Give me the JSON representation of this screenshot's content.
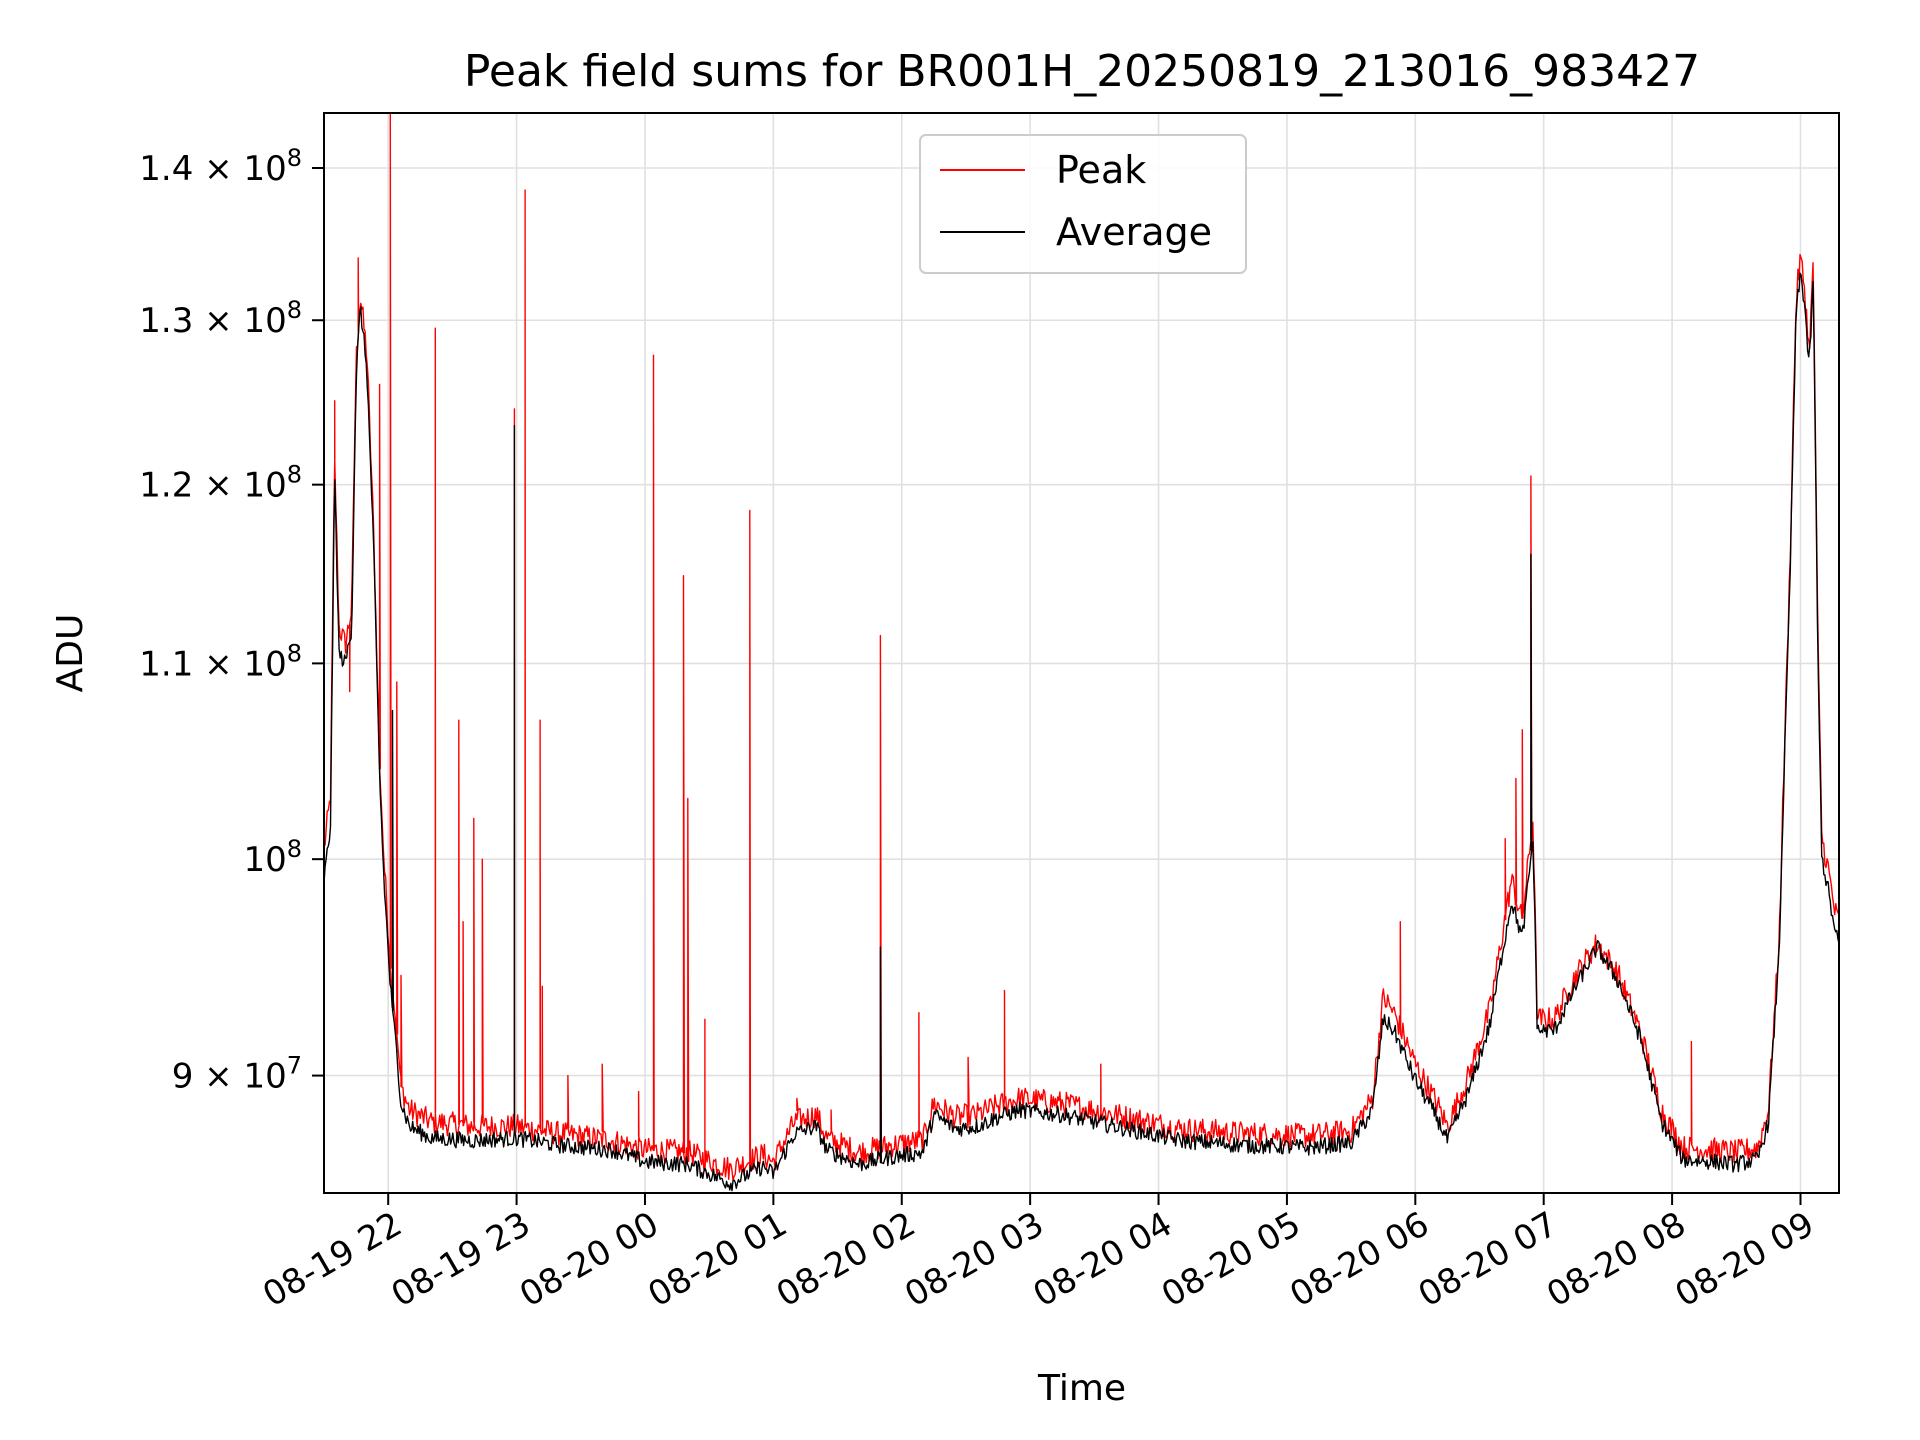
{
  "chart_data": {
    "type": "line",
    "title": "Peak field sums for BR001H_20250819_213016_983427",
    "xlabel": "Time",
    "ylabel": "ADU",
    "yscale": "log",
    "grid": true,
    "legend_placement": "top-center",
    "xlim": [
      "2025-08-19 21:30",
      "2025-08-20 09:18"
    ],
    "ylim": [
      85000000,
      143800000
    ],
    "x_ticks": [
      {
        "t": "2025-08-19 22:00",
        "label": "08-19 22"
      },
      {
        "t": "2025-08-19 23:00",
        "label": "08-19 23"
      },
      {
        "t": "2025-08-20 00:00",
        "label": "08-20 00"
      },
      {
        "t": "2025-08-20 01:00",
        "label": "08-20 01"
      },
      {
        "t": "2025-08-20 02:00",
        "label": "08-20 02"
      },
      {
        "t": "2025-08-20 03:00",
        "label": "08-20 03"
      },
      {
        "t": "2025-08-20 04:00",
        "label": "08-20 04"
      },
      {
        "t": "2025-08-20 05:00",
        "label": "08-20 05"
      },
      {
        "t": "2025-08-20 06:00",
        "label": "08-20 06"
      },
      {
        "t": "2025-08-20 07:00",
        "label": "08-20 07"
      },
      {
        "t": "2025-08-20 08:00",
        "label": "08-20 08"
      },
      {
        "t": "2025-08-20 09:00",
        "label": "08-20 09"
      }
    ],
    "y_ticks": [
      {
        "value": 90000000,
        "base": "9 × 10",
        "exp": "7"
      },
      {
        "value": 100000000,
        "base": "10",
        "exp": "8"
      },
      {
        "value": 110000000,
        "base": "1.1 × 10",
        "exp": "8"
      },
      {
        "value": 120000000,
        "base": "1.2 × 10",
        "exp": "8"
      },
      {
        "value": 130000000,
        "base": "1.3 × 10",
        "exp": "8"
      },
      {
        "value": 140000000,
        "base": "1.4 × 10",
        "exp": "8"
      }
    ],
    "series": [
      {
        "name": "Peak",
        "color": "#ff0000",
        "points": [
          [
            "2025-08-19 21:30",
            100500000
          ],
          [
            "2025-08-19 21:33",
            103000000
          ],
          [
            "2025-08-19 21:35",
            121500000
          ],
          [
            "2025-08-19 21:37",
            112000000
          ],
          [
            "2025-08-19 21:40",
            111000000
          ],
          [
            "2025-08-19 21:43",
            113000000
          ],
          [
            "2025-08-19 21:45",
            127500000
          ],
          [
            "2025-08-19 21:47",
            131500000
          ],
          [
            "2025-08-19 21:50",
            128000000
          ],
          [
            "2025-08-19 21:53",
            118000000
          ],
          [
            "2025-08-19 21:56",
            105000000
          ],
          [
            "2025-08-19 21:58",
            100000000
          ],
          [
            "2025-08-19 22:01",
            95000000
          ],
          [
            "2025-08-19 22:04",
            92000000
          ],
          [
            "2025-08-19 22:06",
            89500000
          ],
          [
            "2025-08-19 22:10",
            88500000
          ],
          [
            "2025-08-19 22:20",
            88000000
          ],
          [
            "2025-08-19 22:40",
            87800000
          ],
          [
            "2025-08-19 23:00",
            87800000
          ],
          [
            "2025-08-19 23:20",
            87500000
          ],
          [
            "2025-08-19 23:45",
            87200000
          ],
          [
            "2025-08-20 00:00",
            86800000
          ],
          [
            "2025-08-20 00:20",
            86700000
          ],
          [
            "2025-08-20 00:40",
            86000000
          ],
          [
            "2025-08-20 00:55",
            86600000
          ],
          [
            "2025-08-20 01:00",
            86300000
          ],
          [
            "2025-08-20 01:10",
            88000000
          ],
          [
            "2025-08-20 01:20",
            88300000
          ],
          [
            "2025-08-20 01:25",
            87300000
          ],
          [
            "2025-08-20 01:40",
            86700000
          ],
          [
            "2025-08-20 01:55",
            87000000
          ],
          [
            "2025-08-20 02:10",
            87200000
          ],
          [
            "2025-08-20 02:15",
            88800000
          ],
          [
            "2025-08-20 02:25",
            88200000
          ],
          [
            "2025-08-20 02:35",
            88300000
          ],
          [
            "2025-08-20 02:45",
            88700000
          ],
          [
            "2025-08-20 02:55",
            89000000
          ],
          [
            "2025-08-20 03:15",
            88800000
          ],
          [
            "2025-08-20 03:30",
            88500000
          ],
          [
            "2025-08-20 03:50",
            88100000
          ],
          [
            "2025-08-20 04:10",
            87700000
          ],
          [
            "2025-08-20 04:40",
            87500000
          ],
          [
            "2025-08-20 05:10",
            87400000
          ],
          [
            "2025-08-20 05:30",
            87600000
          ],
          [
            "2025-08-20 05:40",
            89000000
          ],
          [
            "2025-08-20 05:45",
            93500000
          ],
          [
            "2025-08-20 05:50",
            92800000
          ],
          [
            "2025-08-20 06:00",
            90500000
          ],
          [
            "2025-08-20 06:10",
            88800000
          ],
          [
            "2025-08-20 06:15",
            87800000
          ],
          [
            "2025-08-20 06:25",
            90000000
          ],
          [
            "2025-08-20 06:35",
            93000000
          ],
          [
            "2025-08-20 06:40",
            96000000
          ],
          [
            "2025-08-20 06:45",
            99000000
          ],
          [
            "2025-08-20 06:50",
            97000000
          ],
          [
            "2025-08-20 06:55",
            102000000
          ],
          [
            "2025-08-20 06:57",
            92500000
          ],
          [
            "2025-08-20 07:05",
            92500000
          ],
          [
            "2025-08-20 07:15",
            94500000
          ],
          [
            "2025-08-20 07:25",
            96000000
          ],
          [
            "2025-08-20 07:35",
            94500000
          ],
          [
            "2025-08-20 07:45",
            92000000
          ],
          [
            "2025-08-20 07:55",
            88500000
          ],
          [
            "2025-08-20 08:05",
            86900000
          ],
          [
            "2025-08-20 08:20",
            86800000
          ],
          [
            "2025-08-20 08:30",
            86700000
          ],
          [
            "2025-08-20 08:40",
            86900000
          ],
          [
            "2025-08-20 08:45",
            88500000
          ],
          [
            "2025-08-20 08:50",
            96000000
          ],
          [
            "2025-08-20 08:55",
            115000000
          ],
          [
            "2025-08-20 08:58",
            131500000
          ],
          [
            "2025-08-20 09:00",
            134000000
          ],
          [
            "2025-08-20 09:02",
            132000000
          ],
          [
            "2025-08-20 09:04",
            128000000
          ],
          [
            "2025-08-20 09:06",
            133500000
          ],
          [
            "2025-08-20 09:08",
            112000000
          ],
          [
            "2025-08-20 09:10",
            101000000
          ],
          [
            "2025-08-20 09:13",
            99500000
          ],
          [
            "2025-08-20 09:16",
            97500000
          ],
          [
            "2025-08-20 09:18",
            97000000
          ]
        ],
        "spikes": [
          [
            "2025-08-19 21:35",
            125000000
          ],
          [
            "2025-08-19 21:42",
            108500000
          ],
          [
            "2025-08-19 21:46",
            134000000
          ],
          [
            "2025-08-19 21:56",
            126000000
          ],
          [
            "2025-08-19 22:01",
            143800000
          ],
          [
            "2025-08-19 22:04",
            109000000
          ],
          [
            "2025-08-19 22:06",
            94500000
          ],
          [
            "2025-08-19 22:22",
            129500000
          ],
          [
            "2025-08-19 22:33",
            107000000
          ],
          [
            "2025-08-19 22:35",
            97000000
          ],
          [
            "2025-08-19 22:40",
            102000000
          ],
          [
            "2025-08-19 22:44",
            100000000
          ],
          [
            "2025-08-19 22:59",
            124500000
          ],
          [
            "2025-08-19 23:04",
            138500000
          ],
          [
            "2025-08-19 23:11",
            107000000
          ],
          [
            "2025-08-19 23:12",
            94000000
          ],
          [
            "2025-08-19 23:24",
            90000000
          ],
          [
            "2025-08-19 23:40",
            90500000
          ],
          [
            "2025-08-19 23:57",
            89300000
          ],
          [
            "2025-08-20 00:04",
            127800000
          ],
          [
            "2025-08-20 00:18",
            114800000
          ],
          [
            "2025-08-20 00:20",
            103000000
          ],
          [
            "2025-08-20 00:28",
            92500000
          ],
          [
            "2025-08-20 00:49",
            118500000
          ],
          [
            "2025-08-20 01:11",
            89000000
          ],
          [
            "2025-08-20 01:27",
            88500000
          ],
          [
            "2025-08-20 01:50",
            111500000
          ],
          [
            "2025-08-20 02:08",
            92800000
          ],
          [
            "2025-08-20 02:31",
            90800000
          ],
          [
            "2025-08-20 02:48",
            93800000
          ],
          [
            "2025-08-20 03:33",
            90500000
          ],
          [
            "2025-08-20 05:53",
            97000000
          ],
          [
            "2025-08-20 06:42",
            101000000
          ],
          [
            "2025-08-20 06:47",
            104000000
          ],
          [
            "2025-08-20 06:50",
            106500000
          ],
          [
            "2025-08-20 06:54",
            120500000
          ],
          [
            "2025-08-20 08:09",
            91500000
          ]
        ]
      },
      {
        "name": "Average",
        "color": "#000000",
        "points": [
          [
            "2025-08-19 21:30",
            99000000
          ],
          [
            "2025-08-19 21:33",
            101500000
          ],
          [
            "2025-08-19 21:35",
            120500000
          ],
          [
            "2025-08-19 21:37",
            110500000
          ],
          [
            "2025-08-19 21:40",
            110000000
          ],
          [
            "2025-08-19 21:43",
            112000000
          ],
          [
            "2025-08-19 21:45",
            126500000
          ],
          [
            "2025-08-19 21:47",
            130800000
          ],
          [
            "2025-08-19 21:50",
            127000000
          ],
          [
            "2025-08-19 21:53",
            117000000
          ],
          [
            "2025-08-19 21:56",
            104000000
          ],
          [
            "2025-08-19 21:58",
            99000000
          ],
          [
            "2025-08-19 22:01",
            94000000
          ],
          [
            "2025-08-19 22:04",
            91000000
          ],
          [
            "2025-08-19 22:06",
            88800000
          ],
          [
            "2025-08-19 22:10",
            87800000
          ],
          [
            "2025-08-19 22:20",
            87300000
          ],
          [
            "2025-08-19 22:40",
            87200000
          ],
          [
            "2025-08-19 23:00",
            87300000
          ],
          [
            "2025-08-19 23:20",
            87000000
          ],
          [
            "2025-08-19 23:45",
            86800000
          ],
          [
            "2025-08-20 00:00",
            86300000
          ],
          [
            "2025-08-20 00:20",
            86200000
          ],
          [
            "2025-08-20 00:40",
            85400000
          ],
          [
            "2025-08-20 00:55",
            86100000
          ],
          [
            "2025-08-20 01:00",
            85800000
          ],
          [
            "2025-08-20 01:10",
            87500000
          ],
          [
            "2025-08-20 01:20",
            87800000
          ],
          [
            "2025-08-20 01:25",
            86800000
          ],
          [
            "2025-08-20 01:40",
            86200000
          ],
          [
            "2025-08-20 01:55",
            86500000
          ],
          [
            "2025-08-20 02:10",
            86700000
          ],
          [
            "2025-08-20 02:15",
            88300000
          ],
          [
            "2025-08-20 02:25",
            87700000
          ],
          [
            "2025-08-20 02:35",
            87800000
          ],
          [
            "2025-08-20 02:45",
            88200000
          ],
          [
            "2025-08-20 02:55",
            88500000
          ],
          [
            "2025-08-20 03:15",
            88300000
          ],
          [
            "2025-08-20 03:30",
            88000000
          ],
          [
            "2025-08-20 03:50",
            87600000
          ],
          [
            "2025-08-20 04:10",
            87200000
          ],
          [
            "2025-08-20 04:40",
            87000000
          ],
          [
            "2025-08-20 05:10",
            86900000
          ],
          [
            "2025-08-20 05:30",
            87100000
          ],
          [
            "2025-08-20 05:40",
            88500000
          ],
          [
            "2025-08-20 05:45",
            92500000
          ],
          [
            "2025-08-20 05:50",
            92000000
          ],
          [
            "2025-08-20 06:00",
            89800000
          ],
          [
            "2025-08-20 06:10",
            88200000
          ],
          [
            "2025-08-20 06:15",
            87200000
          ],
          [
            "2025-08-20 06:25",
            89300000
          ],
          [
            "2025-08-20 06:35",
            92300000
          ],
          [
            "2025-08-20 06:40",
            95200000
          ],
          [
            "2025-08-20 06:45",
            98000000
          ],
          [
            "2025-08-20 06:50",
            96200000
          ],
          [
            "2025-08-20 06:55",
            101000000
          ],
          [
            "2025-08-20 06:57",
            92000000
          ],
          [
            "2025-08-20 07:05",
            92000000
          ],
          [
            "2025-08-20 07:15",
            94000000
          ],
          [
            "2025-08-20 07:25",
            95800000
          ],
          [
            "2025-08-20 07:35",
            94200000
          ],
          [
            "2025-08-20 07:45",
            91700000
          ],
          [
            "2025-08-20 07:55",
            88000000
          ],
          [
            "2025-08-20 08:05",
            86400000
          ],
          [
            "2025-08-20 08:20",
            86300000
          ],
          [
            "2025-08-20 08:30",
            86200000
          ],
          [
            "2025-08-20 08:40",
            86400000
          ],
          [
            "2025-08-20 08:45",
            88000000
          ],
          [
            "2025-08-20 08:50",
            95500000
          ],
          [
            "2025-08-20 08:55",
            114000000
          ],
          [
            "2025-08-20 08:58",
            130500000
          ],
          [
            "2025-08-20 09:00",
            133000000
          ],
          [
            "2025-08-20 09:02",
            131000000
          ],
          [
            "2025-08-20 09:04",
            127000000
          ],
          [
            "2025-08-20 09:06",
            132500000
          ],
          [
            "2025-08-20 09:08",
            111000000
          ],
          [
            "2025-08-20 09:10",
            100000000
          ],
          [
            "2025-08-20 09:13",
            98500000
          ],
          [
            "2025-08-20 09:16",
            96500000
          ],
          [
            "2025-08-20 09:18",
            96000000
          ]
        ],
        "spikes": [
          [
            "2025-08-19 22:59",
            123500000
          ],
          [
            "2025-08-20 01:50",
            95800000
          ],
          [
            "2025-08-20 06:54",
            116000000
          ],
          [
            "2025-08-19 22:02",
            107500000
          ]
        ]
      }
    ]
  }
}
